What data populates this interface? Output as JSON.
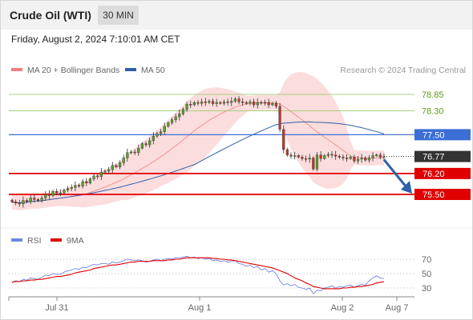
{
  "header": {
    "title": "Crude Oil (WTI)",
    "timeframe": "30 MIN"
  },
  "timestamp": "Friday, August 2, 2024 7:10:01 AM CET",
  "credit": "Research © 2024 Trading Central",
  "legend": {
    "ma20_bb": "MA 20 + Bollinger Bands",
    "ma50": "MA 50",
    "rsi": "RSI",
    "ma9": "9MA"
  },
  "colors": {
    "candle_up": "#5aa02c",
    "candle_down": "#c0392b",
    "bollinger": "#f6b3b3",
    "ma20": "#f08080",
    "ma50": "#2f5fa8",
    "support": "#e00000",
    "pivot": "#3b6fd6",
    "resistance": "#a9cf7c",
    "current": "#333333",
    "rsi": "#6f86e6",
    "rsi_ma": "#e00000"
  },
  "chart_data": [
    {
      "type": "candlestick",
      "title": "",
      "x_ticks": [
        "Jul 31",
        "Aug 1",
        "Aug 2",
        "Aug 7"
      ],
      "ylim": [
        74.9,
        79.2
      ],
      "closes": [
        75.25,
        75.21,
        75.18,
        75.3,
        75.26,
        75.38,
        75.33,
        75.29,
        75.38,
        75.5,
        75.46,
        75.6,
        75.55,
        75.55,
        75.64,
        75.7,
        75.73,
        75.8,
        75.78,
        75.93,
        75.88,
        76.02,
        76.12,
        76.1,
        76.25,
        76.28,
        76.33,
        76.47,
        76.42,
        76.56,
        76.72,
        76.9,
        76.92,
        76.9,
        77.05,
        77.2,
        77.16,
        77.3,
        77.45,
        77.54,
        77.6,
        77.78,
        77.9,
        78.0,
        78.1,
        78.2,
        78.35,
        78.52,
        78.5,
        78.58,
        78.55,
        78.6,
        78.58,
        78.62,
        78.54,
        78.58,
        78.55,
        78.6,
        78.58,
        78.62,
        78.7,
        78.6,
        78.58,
        78.55,
        78.6,
        78.5,
        78.58,
        78.56,
        78.58,
        78.5,
        78.55,
        78.45,
        77.68,
        77.0,
        76.82,
        76.78,
        76.8,
        76.75,
        76.7,
        76.68,
        76.72,
        76.35,
        76.82,
        76.7,
        76.8,
        76.84,
        76.82,
        76.78,
        76.75,
        76.72,
        76.7,
        76.75,
        76.62,
        76.68,
        76.72,
        76.65,
        76.72,
        76.8,
        76.82,
        76.75,
        76.77
      ],
      "levels": [
        {
          "value": 78.85,
          "label": "78.85",
          "kind": "resistance"
        },
        {
          "value": 78.3,
          "label": "78.30",
          "kind": "resistance"
        },
        {
          "value": 77.5,
          "label": "77.50",
          "kind": "pivot"
        },
        {
          "value": 76.77,
          "label": "76.77",
          "kind": "current"
        },
        {
          "value": 76.2,
          "label": "76.20",
          "kind": "support"
        },
        {
          "value": 75.5,
          "label": "75.50",
          "kind": "support"
        }
      ],
      "projection": {
        "from": 76.77,
        "to": 75.5,
        "direction": "down"
      }
    },
    {
      "type": "line",
      "title": "RSI",
      "y_ticks": [
        70,
        50,
        30
      ],
      "ylim": [
        20,
        80
      ],
      "series": [
        {
          "name": "RSI",
          "values": [
            38,
            40,
            39,
            42,
            41,
            44,
            43,
            42,
            45,
            48,
            47,
            50,
            49,
            49,
            52,
            54,
            55,
            57,
            56,
            59,
            58,
            61,
            63,
            62,
            64,
            64,
            63,
            66,
            65,
            66,
            68,
            70,
            69,
            68,
            69,
            68,
            66,
            67,
            69,
            70,
            68,
            70,
            71,
            70,
            72,
            72,
            73,
            74,
            72,
            73,
            71,
            72,
            70,
            71,
            68,
            69,
            67,
            68,
            66,
            67,
            68,
            64,
            63,
            60,
            62,
            58,
            60,
            55,
            57,
            52,
            54,
            50,
            40,
            34,
            36,
            33,
            35,
            31,
            30,
            28,
            30,
            22,
            27,
            26,
            30,
            31,
            33,
            30,
            32,
            31,
            33,
            34,
            31,
            33,
            35,
            34,
            40,
            44,
            47,
            44,
            43
          ]
        },
        {
          "name": "9MA",
          "values": [
            38,
            39,
            39,
            40,
            40,
            41,
            41,
            42,
            42,
            43,
            44,
            45,
            46,
            46,
            47,
            48,
            49,
            51,
            52,
            53,
            54,
            55,
            57,
            58,
            59,
            60,
            61,
            62,
            62,
            63,
            64,
            65,
            66,
            66,
            67,
            67,
            67,
            67,
            68,
            68,
            68,
            68,
            69,
            69,
            70,
            70,
            71,
            72,
            72,
            72,
            72,
            72,
            72,
            72,
            71,
            71,
            70,
            70,
            69,
            69,
            68,
            67,
            66,
            65,
            64,
            63,
            62,
            61,
            60,
            59,
            58,
            56,
            54,
            52,
            50,
            47,
            44,
            42,
            40,
            37,
            35,
            32,
            31,
            30,
            29,
            29,
            29,
            29,
            29,
            30,
            30,
            31,
            31,
            32,
            32,
            33,
            34,
            35,
            37,
            38,
            39
          ]
        }
      ]
    }
  ]
}
